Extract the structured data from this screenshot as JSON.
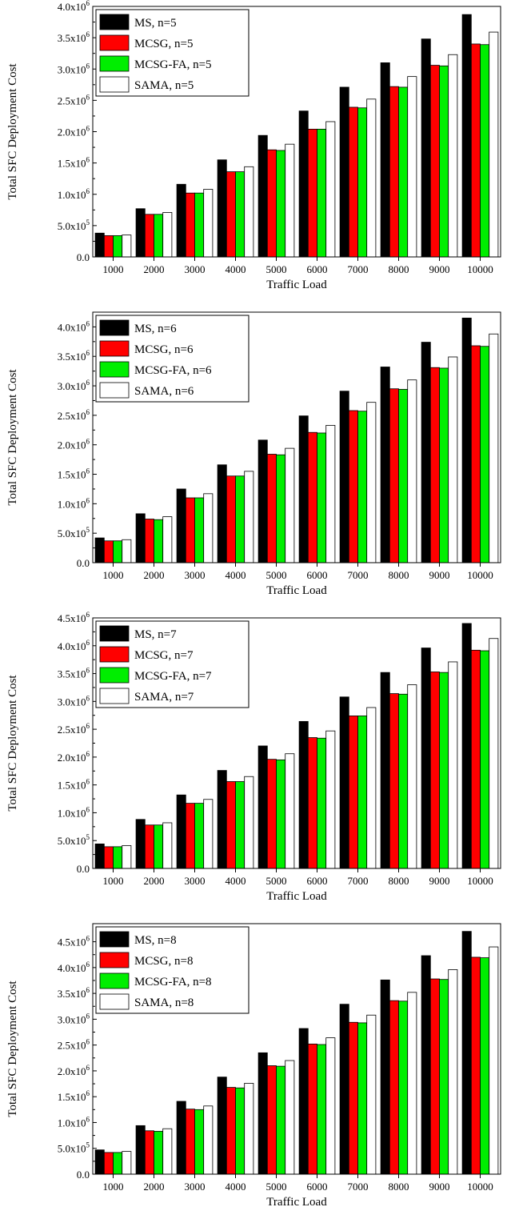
{
  "chart_data": [
    {
      "type": "bar",
      "categories": [
        "1000",
        "2000",
        "3000",
        "4000",
        "5000",
        "6000",
        "7000",
        "8000",
        "9000",
        "10000"
      ],
      "series": [
        {
          "name": "MS, n=5",
          "color": "#000000",
          "values": [
            380000,
            770000,
            1160000,
            1550000,
            1940000,
            2330000,
            2710000,
            3100000,
            3480000,
            3870000
          ]
        },
        {
          "name": "MCSG, n=5",
          "color": "#ff0000",
          "values": [
            340000,
            680000,
            1020000,
            1360000,
            1710000,
            2040000,
            2390000,
            2720000,
            3060000,
            3400000
          ]
        },
        {
          "name": "MCSG-FA, n=5",
          "color": "#00ee00",
          "values": [
            340000,
            680000,
            1020000,
            1360000,
            1700000,
            2040000,
            2380000,
            2710000,
            3050000,
            3390000
          ]
        },
        {
          "name": "SAMA, n=5",
          "color": "#ffffff",
          "values": [
            350000,
            710000,
            1080000,
            1440000,
            1800000,
            2160000,
            2520000,
            2880000,
            3230000,
            3590000
          ]
        }
      ],
      "xlabel": "Traffic Load",
      "ylabel": "Total SFC Deployment Cost",
      "ylim": [
        0,
        4000000
      ],
      "yticks": [
        0,
        500000,
        1000000,
        1500000,
        2000000,
        2500000,
        3000000,
        3500000,
        4000000
      ],
      "ytick_labels": [
        "0.0",
        "5.0x10^5",
        "1.0x10^6",
        "1.5x10^6",
        "2.0x10^6",
        "2.5x10^6",
        "3.0x10^6",
        "3.5x10^6",
        "4.0x10^6"
      ],
      "legend": "top-left"
    },
    {
      "type": "bar",
      "categories": [
        "1000",
        "2000",
        "3000",
        "4000",
        "5000",
        "6000",
        "7000",
        "8000",
        "9000",
        "10000"
      ],
      "series": [
        {
          "name": "MS, n=6",
          "color": "#000000",
          "values": [
            420000,
            830000,
            1250000,
            1660000,
            2080000,
            2490000,
            2910000,
            3320000,
            3740000,
            4150000
          ]
        },
        {
          "name": "MCSG, n=6",
          "color": "#ff0000",
          "values": [
            370000,
            740000,
            1100000,
            1470000,
            1840000,
            2210000,
            2580000,
            2950000,
            3310000,
            3680000
          ]
        },
        {
          "name": "MCSG-FA, n=6",
          "color": "#00ee00",
          "values": [
            370000,
            730000,
            1100000,
            1470000,
            1830000,
            2200000,
            2570000,
            2940000,
            3300000,
            3670000
          ]
        },
        {
          "name": "SAMA, n=6",
          "color": "#ffffff",
          "values": [
            390000,
            780000,
            1170000,
            1550000,
            1940000,
            2330000,
            2720000,
            3100000,
            3490000,
            3880000
          ]
        }
      ],
      "xlabel": "Traffic Load",
      "ylabel": "Total SFC Deployment Cost",
      "ylim": [
        0,
        4250000
      ],
      "yticks": [
        0,
        500000,
        1000000,
        1500000,
        2000000,
        2500000,
        3000000,
        3500000,
        4000000
      ],
      "ytick_labels": [
        "0.0",
        "5.0x10^5",
        "1.0x10^6",
        "1.5x10^6",
        "2.0x10^6",
        "2.5x10^6",
        "3.0x10^6",
        "3.5x10^6",
        "4.0x10^6"
      ],
      "legend": "top-left"
    },
    {
      "type": "bar",
      "categories": [
        "1000",
        "2000",
        "3000",
        "4000",
        "5000",
        "6000",
        "7000",
        "8000",
        "9000",
        "10000"
      ],
      "series": [
        {
          "name": "MS, n=7",
          "color": "#000000",
          "values": [
            440000,
            880000,
            1320000,
            1760000,
            2200000,
            2640000,
            3080000,
            3520000,
            3960000,
            4400000
          ]
        },
        {
          "name": "MCSG,  n=7",
          "color": "#ff0000",
          "values": [
            390000,
            780000,
            1170000,
            1560000,
            1960000,
            2350000,
            2740000,
            3140000,
            3530000,
            3920000
          ]
        },
        {
          "name": "MCSG-FA, n=7",
          "color": "#00ee00",
          "values": [
            390000,
            780000,
            1170000,
            1560000,
            1950000,
            2340000,
            2740000,
            3130000,
            3520000,
            3910000
          ]
        },
        {
          "name": "SAMA, n=7",
          "color": "#ffffff",
          "values": [
            410000,
            820000,
            1240000,
            1650000,
            2060000,
            2470000,
            2890000,
            3300000,
            3710000,
            4130000
          ]
        }
      ],
      "xlabel": "Traffic Load",
      "ylabel": "Total SFC Deployment Cost",
      "ylim": [
        0,
        4500000
      ],
      "yticks": [
        0,
        500000,
        1000000,
        1500000,
        2000000,
        2500000,
        3000000,
        3500000,
        4000000,
        4500000
      ],
      "ytick_labels": [
        "0.0",
        "5.0x10^5",
        "1.0x10^6",
        "1.5x10^6",
        "2.0x10^6",
        "2.5x10^6",
        "3.0x10^6",
        "3.5x10^6",
        "4.0x10^6",
        "4.5x10^6"
      ],
      "legend": "top-left"
    },
    {
      "type": "bar",
      "categories": [
        "1000",
        "2000",
        "3000",
        "4000",
        "5000",
        "6000",
        "7000",
        "8000",
        "9000",
        "10000"
      ],
      "series": [
        {
          "name": "MS, n=8",
          "color": "#000000",
          "values": [
            470000,
            940000,
            1410000,
            1880000,
            2350000,
            2820000,
            3290000,
            3760000,
            4230000,
            4700000
          ]
        },
        {
          "name": "MCSG, n=8",
          "color": "#ff0000",
          "values": [
            420000,
            840000,
            1260000,
            1680000,
            2100000,
            2520000,
            2940000,
            3360000,
            3780000,
            4200000
          ]
        },
        {
          "name": "MCSG-FA, n=8",
          "color": "#00ee00",
          "values": [
            420000,
            830000,
            1250000,
            1670000,
            2090000,
            2510000,
            2930000,
            3350000,
            3770000,
            4190000
          ]
        },
        {
          "name": "SAMA, n=8",
          "color": "#ffffff",
          "values": [
            440000,
            880000,
            1320000,
            1760000,
            2200000,
            2640000,
            3080000,
            3520000,
            3960000,
            4400000
          ]
        }
      ],
      "xlabel": "Traffic Load",
      "ylabel": "Total SFC Deployment Cost",
      "ylim": [
        0,
        4850000
      ],
      "yticks": [
        0,
        500000,
        1000000,
        1500000,
        2000000,
        2500000,
        3000000,
        3500000,
        4000000,
        4500000
      ],
      "ytick_labels": [
        "0.0",
        "5.0x10^5",
        "1.0x10^6",
        "1.5x10^6",
        "2.0x10^6",
        "2.5x10^6",
        "3.0x10^6",
        "3.5x10^6",
        "4.0x10^6",
        "4.5x10^6"
      ],
      "legend": "top-left"
    }
  ]
}
